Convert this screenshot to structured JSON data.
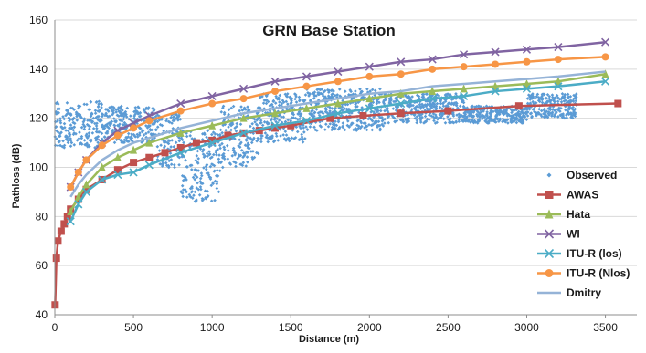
{
  "chart_data": {
    "type": "line",
    "title": "GRN Base Station",
    "xlabel": "Distance (m)",
    "ylabel": "Pathloss (dB)",
    "xlim": [
      0,
      3700
    ],
    "ylim": [
      40,
      160
    ],
    "x_ticks": [
      0,
      500,
      1000,
      1500,
      2000,
      2500,
      3000,
      3500
    ],
    "y_ticks": [
      40,
      60,
      80,
      100,
      120,
      140,
      160
    ],
    "grid": "horizontal",
    "legend_position": "right",
    "series": [
      {
        "name": "Observed",
        "kind": "scatter",
        "color": "#5b9bd5",
        "marker": "diamond",
        "bands": [
          {
            "x": [
              0,
              300
            ],
            "y": [
              108,
              127
            ]
          },
          {
            "x": [
              300,
              650
            ],
            "y": [
              110,
              125
            ]
          },
          {
            "x": [
              650,
              800
            ],
            "y": [
              100,
              122
            ]
          },
          {
            "x": [
              800,
              1050
            ],
            "y": [
              86,
              115
            ]
          },
          {
            "x": [
              1050,
              1300
            ],
            "y": [
              100,
              125
            ]
          },
          {
            "x": [
              1300,
              1600
            ],
            "y": [
              110,
              130
            ]
          },
          {
            "x": [
              1600,
              2100
            ],
            "y": [
              115,
              132
            ]
          },
          {
            "x": [
              2100,
              2600
            ],
            "y": [
              118,
              130
            ]
          },
          {
            "x": [
              2600,
              3000
            ],
            "y": [
              118,
              125
            ]
          },
          {
            "x": [
              3000,
              3320
            ],
            "y": [
              120,
              130
            ]
          }
        ]
      },
      {
        "name": "AWAS",
        "kind": "line",
        "color": "#c0504d",
        "marker": "square",
        "x": [
          2,
          10,
          20,
          40,
          60,
          80,
          100,
          150,
          200,
          300,
          400,
          500,
          600,
          700,
          800,
          900,
          1000,
          1100,
          1200,
          1300,
          1400,
          1500,
          1750,
          1960,
          2200,
          2500,
          2950,
          3580
        ],
        "y": [
          44,
          63,
          70,
          74,
          77,
          80,
          83,
          87,
          91,
          95,
          99,
          102,
          104,
          106,
          108,
          110,
          111,
          113,
          114,
          115,
          116,
          117,
          120,
          121,
          122,
          123,
          125,
          126
        ]
      },
      {
        "name": "Hata",
        "kind": "line",
        "color": "#9bbb59",
        "marker": "triangle",
        "x": [
          100,
          150,
          200,
          300,
          400,
          500,
          600,
          800,
          1000,
          1200,
          1400,
          1600,
          1800,
          2000,
          2200,
          2400,
          2600,
          2800,
          3000,
          3200,
          3500
        ],
        "y": [
          82,
          88,
          93,
          100,
          104,
          107,
          110,
          114,
          117,
          120,
          122,
          124,
          126,
          128,
          130,
          131,
          132,
          133,
          134,
          135,
          138
        ]
      },
      {
        "name": "WI",
        "kind": "line",
        "color": "#8064a2",
        "marker": "x",
        "x": [
          100,
          150,
          200,
          300,
          400,
          500,
          600,
          800,
          1000,
          1200,
          1400,
          1600,
          1800,
          2000,
          2200,
          2400,
          2600,
          2800,
          3000,
          3200,
          3500
        ],
        "y": [
          92,
          98,
          103,
          110,
          115,
          118,
          121,
          126,
          129,
          132,
          135,
          137,
          139,
          141,
          143,
          144,
          146,
          147,
          148,
          149,
          151
        ]
      },
      {
        "name": "ITU-R (los)",
        "kind": "line",
        "color": "#4bacc6",
        "marker": "x",
        "x": [
          100,
          150,
          200,
          300,
          400,
          500,
          600,
          800,
          1000,
          1200,
          1400,
          1600,
          1800,
          2000,
          2200,
          2400,
          2600,
          2800,
          3000,
          3200,
          3500
        ],
        "y": [
          78,
          85,
          90,
          95,
          97,
          98,
          101,
          106,
          110,
          114,
          117,
          119,
          122,
          124,
          126,
          128,
          129,
          131,
          132,
          133,
          135
        ]
      },
      {
        "name": "ITU-R (Nlos)",
        "kind": "line",
        "color": "#f79646",
        "marker": "circle",
        "x": [
          100,
          150,
          200,
          300,
          400,
          500,
          600,
          800,
          1000,
          1200,
          1400,
          1600,
          1800,
          2000,
          2200,
          2400,
          2600,
          2800,
          3000,
          3200,
          3500
        ],
        "y": [
          92,
          98,
          103,
          109,
          113,
          116,
          119,
          123,
          126,
          128,
          131,
          133,
          135,
          137,
          138,
          140,
          141,
          142,
          143,
          144,
          145
        ]
      },
      {
        "name": "Dmitry",
        "kind": "line",
        "color": "#95b3d7",
        "marker": "none",
        "x": [
          100,
          150,
          200,
          300,
          400,
          500,
          600,
          800,
          1000,
          1200,
          1400,
          1600,
          1800,
          2000,
          2200,
          2400,
          2600,
          2800,
          3000,
          3200,
          3500
        ],
        "y": [
          88,
          93,
          97,
          103,
          107,
          110,
          112,
          116,
          119,
          122,
          124,
          126,
          128,
          130,
          131,
          133,
          134,
          135,
          136,
          137,
          139
        ]
      }
    ]
  }
}
